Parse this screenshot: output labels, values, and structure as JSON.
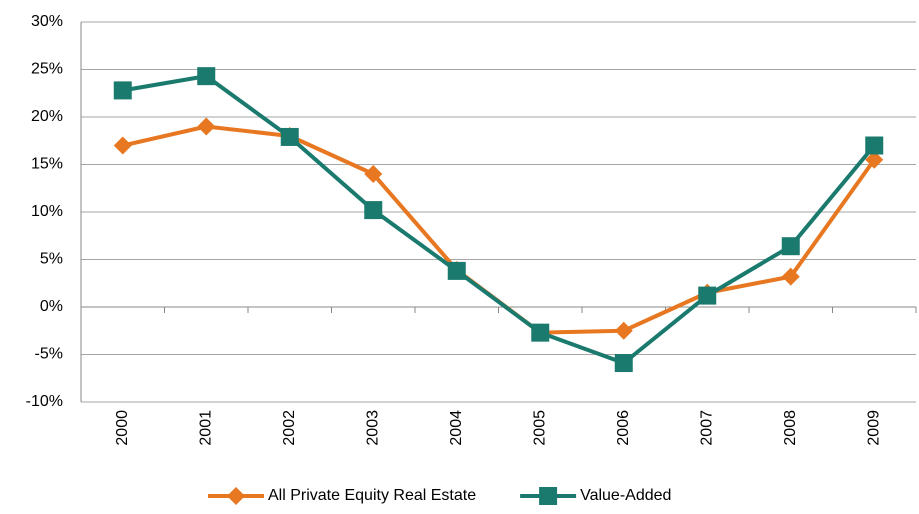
{
  "chart_data": {
    "type": "line",
    "categories": [
      "2000",
      "2001",
      "2002",
      "2003",
      "2004",
      "2005",
      "2006",
      "2007",
      "2008",
      "2009"
    ],
    "series": [
      {
        "name": "All Private Equity Real Estate",
        "color": "#e87722",
        "marker": "diamond",
        "values": [
          17,
          19,
          18,
          14,
          3.9,
          -2.7,
          -2.5,
          1.5,
          3.2,
          15.5
        ]
      },
      {
        "name": "Value-Added",
        "color": "#1a7a6e",
        "marker": "square",
        "values": [
          22.8,
          24.3,
          17.9,
          10.2,
          3.8,
          -2.7,
          -5.9,
          1.2,
          6.4,
          17
        ]
      }
    ],
    "ylim": [
      -10,
      30
    ],
    "yticks": [
      {
        "value": -10,
        "label": "-10%"
      },
      {
        "value": -5,
        "label": "-5%"
      },
      {
        "value": 0,
        "label": "0%"
      },
      {
        "value": 5,
        "label": "5%"
      },
      {
        "value": 10,
        "label": "10%"
      },
      {
        "value": 15,
        "label": "15%"
      },
      {
        "value": 20,
        "label": "20%"
      },
      {
        "value": 25,
        "label": "25%"
      },
      {
        "value": 30,
        "label": "30%"
      }
    ],
    "grid": true,
    "legend": "bottom"
  }
}
